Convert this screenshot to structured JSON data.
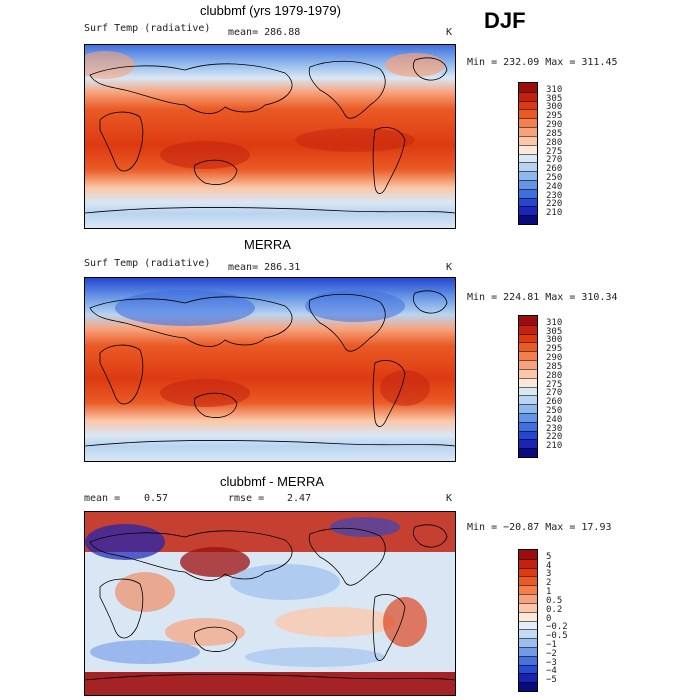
{
  "season": "DJF",
  "units": "K",
  "panels": [
    {
      "title": "clubbmf (yrs 1979-1979)",
      "variable": "Surf Temp (radiative)",
      "stat_text": "mean= 286.88",
      "units": "K",
      "range_text": "Min = 232.09 Max = 311.45",
      "colorbar_labels": [
        "310",
        "305",
        "300",
        "295",
        "290",
        "285",
        "280",
        "275",
        "270",
        "260",
        "250",
        "240",
        "230",
        "220",
        "210"
      ],
      "colorbar_colors": [
        "#9e0d0d",
        "#c2220e",
        "#dd3a12",
        "#ea5a25",
        "#f47f4c",
        "#f8a27c",
        "#fbc7a8",
        "#fde7d6",
        "#d9e7f5",
        "#b9d4f0",
        "#8fb8ec",
        "#6595e6",
        "#3f6fdf",
        "#2547cf",
        "#1a24b5",
        "#0a0a80"
      ]
    },
    {
      "title": "MERRA",
      "variable": "Surf Temp (radiative)",
      "stat_text": "mean= 286.31",
      "units": "K",
      "range_text": "Min = 224.81 Max = 310.34",
      "colorbar_labels": [
        "310",
        "305",
        "300",
        "295",
        "290",
        "285",
        "280",
        "275",
        "270",
        "260",
        "250",
        "240",
        "230",
        "220",
        "210"
      ],
      "colorbar_colors": [
        "#9e0d0d",
        "#c2220e",
        "#dd3a12",
        "#ea5a25",
        "#f47f4c",
        "#f8a27c",
        "#fbc7a8",
        "#fde7d6",
        "#d9e7f5",
        "#b9d4f0",
        "#8fb8ec",
        "#6595e6",
        "#3f6fdf",
        "#2547cf",
        "#1a24b5",
        "#0a0a80"
      ]
    },
    {
      "title": "clubbmf - MERRA",
      "mean_label": "mean =",
      "mean_value": "0.57",
      "rmse_label": "rmse =",
      "rmse_value": "2.47",
      "units": "K",
      "range_text": "Min = −20.87 Max =   17.93",
      "colorbar_labels": [
        "5",
        "4",
        "3",
        "2",
        "1",
        "0.5",
        "0.2",
        "0",
        "−0.2",
        "−0.5",
        "−1",
        "−2",
        "−3",
        "−4",
        "−5"
      ],
      "colorbar_colors": [
        "#9e0d0d",
        "#c2220e",
        "#dd3a12",
        "#ea5a25",
        "#f47f4c",
        "#f8a27c",
        "#fbc7a8",
        "#fde7d6",
        "#e4eef8",
        "#c4dbf3",
        "#9cc0ee",
        "#6f9ae7",
        "#4572df",
        "#2a4ad0",
        "#1a22b0",
        "#0a0a80"
      ]
    }
  ]
}
